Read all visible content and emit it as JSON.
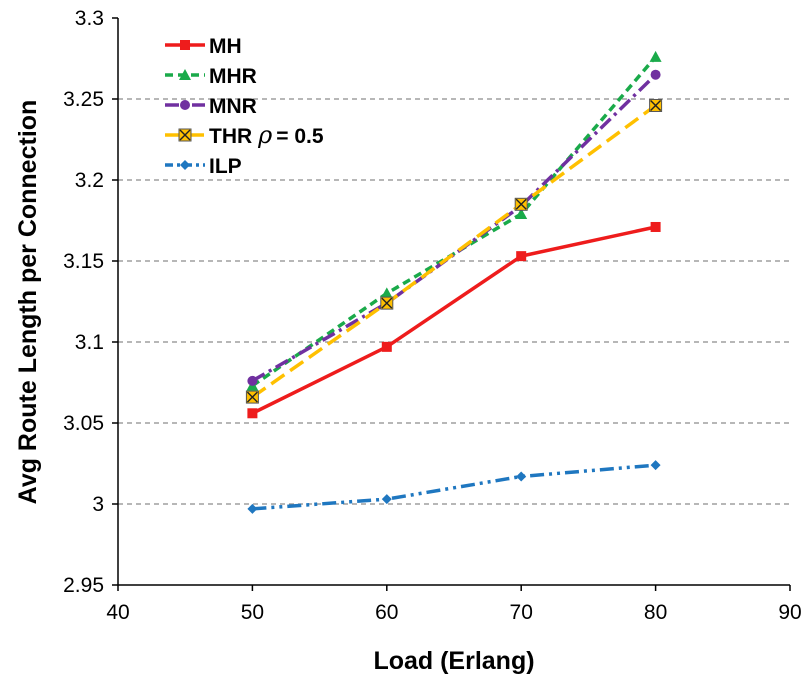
{
  "chart_data": {
    "type": "line",
    "title": "",
    "xlabel": "Load (Erlang)",
    "ylabel": "Avg Route Length per Connection",
    "xlim": [
      40,
      90
    ],
    "ylim": [
      2.95,
      3.3
    ],
    "xticks": [
      40,
      50,
      60,
      70,
      80,
      90
    ],
    "xtick_labels": [
      "40",
      "50",
      "60",
      "70",
      "80",
      "90"
    ],
    "yticks": [
      2.95,
      3.0,
      3.05,
      3.1,
      3.15,
      3.2,
      3.25,
      3.3
    ],
    "ytick_labels": [
      "2.95",
      "3",
      "3.05",
      "3.1",
      "3.15",
      "3.2",
      "3.25",
      "3.3"
    ],
    "grid": "horizontal dashed gray",
    "legend_position": "top-left",
    "x": [
      50,
      60,
      70,
      80
    ],
    "series": [
      {
        "name": "MH",
        "values": [
          3.056,
          3.097,
          3.153,
          3.171
        ],
        "color": "#ee1c1c",
        "dash": "solid",
        "marker": "square"
      },
      {
        "name": "MHR",
        "values": [
          3.073,
          3.13,
          3.179,
          3.276
        ],
        "color": "#1aaa4a",
        "dash": "dash",
        "marker": "triangle"
      },
      {
        "name": "MNR",
        "values": [
          3.076,
          3.124,
          3.184,
          3.265
        ],
        "color": "#7030a0",
        "dash": "dashdot",
        "marker": "circle"
      },
      {
        "name": "THR",
        "legend_suffix": "= 0.5",
        "legend_symbol": "ρ",
        "values": [
          3.066,
          3.124,
          3.185,
          3.246
        ],
        "color": "#ffc000",
        "dash": "longdash",
        "marker": "xbox"
      },
      {
        "name": "ILP",
        "values": [
          2.997,
          3.003,
          3.017,
          3.024
        ],
        "color": "#1f77c0",
        "dash": "dashdotdot",
        "marker": "diamond"
      }
    ]
  }
}
